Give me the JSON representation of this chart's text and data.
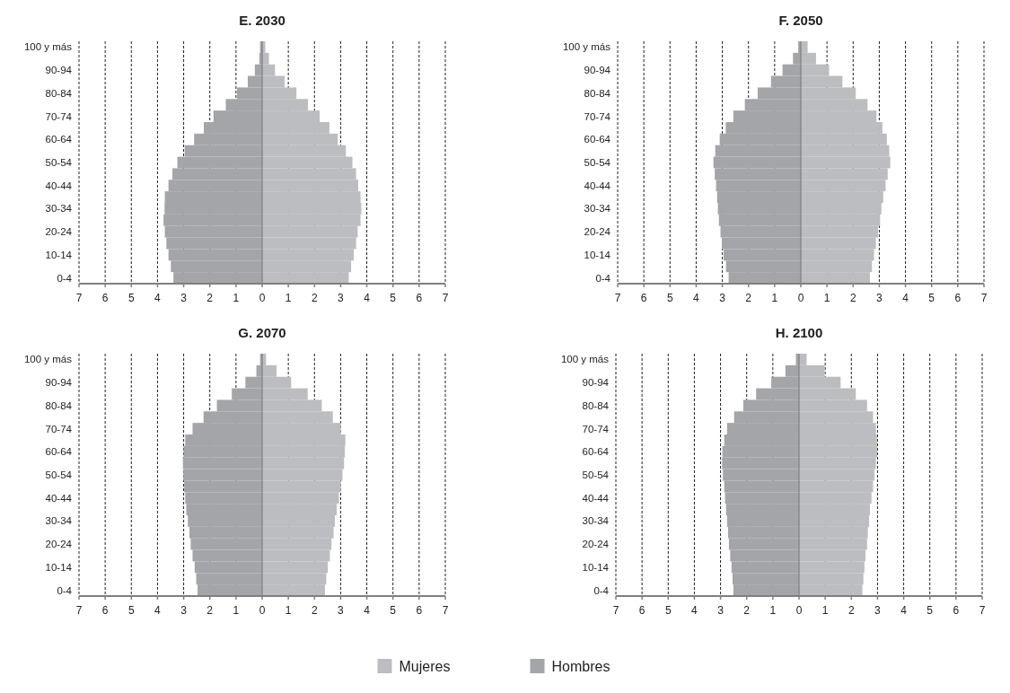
{
  "chart_data": [
    {
      "type": "bar",
      "orientation": "horizontal",
      "stacked": true,
      "title": "E. 2030",
      "grid": "x",
      "xlim": [
        -7,
        7
      ],
      "legend": "bottom",
      "xticks": [
        {
          "value": -7,
          "label": "7"
        },
        {
          "value": -6,
          "label": "6"
        },
        {
          "value": -5,
          "label": "5"
        },
        {
          "value": -4,
          "label": "4"
        },
        {
          "value": -3,
          "label": "3"
        },
        {
          "value": -2,
          "label": "2"
        },
        {
          "value": -1,
          "label": "1"
        },
        0,
        1,
        2,
        3,
        4,
        5,
        6,
        7
      ],
      "categories": [
        "100 y más",
        null,
        "90-94",
        null,
        "80-84",
        null,
        "70-74",
        null,
        "60-64",
        null,
        "50-54",
        null,
        "40-44",
        null,
        "30-34",
        null,
        "20-24",
        null,
        "10-14",
        null,
        "0-4"
      ],
      "series": [
        {
          "name": "Mujeres",
          "color": "#bcbdc0",
          "values": [
            0.12,
            0.26,
            0.49,
            0.86,
            1.31,
            1.75,
            2.2,
            2.57,
            2.89,
            3.2,
            3.45,
            3.59,
            3.67,
            3.76,
            3.79,
            3.76,
            3.65,
            3.59,
            3.5,
            3.4,
            3.31
          ]
        },
        {
          "name": "Hombres",
          "color": "#a3a5a8",
          "values": [
            -0.08,
            -0.11,
            -0.28,
            -0.55,
            -0.96,
            -1.39,
            -1.86,
            -2.23,
            -2.6,
            -2.96,
            -3.24,
            -3.43,
            -3.58,
            -3.72,
            -3.73,
            -3.77,
            -3.72,
            -3.66,
            -3.58,
            -3.49,
            -3.39
          ]
        }
      ]
    },
    {
      "type": "bar",
      "orientation": "horizontal",
      "stacked": true,
      "title": "F. 2050",
      "grid": "x",
      "xlim": [
        -7,
        7
      ],
      "xticks": [
        {
          "value": -7,
          "label": "7"
        },
        {
          "value": -6,
          "label": "6"
        },
        {
          "value": -5,
          "label": "5"
        },
        {
          "value": -4,
          "label": "4"
        },
        {
          "value": -3,
          "label": "3"
        },
        {
          "value": -2,
          "label": "2"
        },
        {
          "value": -1,
          "label": "1"
        },
        0,
        1,
        2,
        3,
        4,
        5,
        6,
        7
      ],
      "categories": [
        "100 y más",
        null,
        "90-94",
        null,
        "80-84",
        null,
        "70-74",
        null,
        "60-64",
        null,
        "50-54",
        null,
        "40-44",
        null,
        "30-34",
        null,
        "20-24",
        null,
        "10-14",
        null,
        "0-4"
      ],
      "series": [
        {
          "color": "#bcbdc0",
          "values": [
            0.26,
            0.58,
            1.08,
            1.59,
            2.1,
            2.55,
            2.89,
            3.12,
            3.29,
            3.38,
            3.42,
            3.32,
            3.24,
            3.15,
            3.08,
            3.03,
            2.95,
            2.87,
            2.8,
            2.72,
            2.64
          ]
        },
        {
          "color": "#a3a5a8",
          "values": [
            -0.1,
            -0.3,
            -0.7,
            -1.14,
            -1.65,
            -2.14,
            -2.58,
            -2.87,
            -3.1,
            -3.27,
            -3.34,
            -3.29,
            -3.24,
            -3.2,
            -3.17,
            -3.13,
            -3.07,
            -3.02,
            -2.95,
            -2.86,
            -2.76
          ]
        }
      ]
    },
    {
      "type": "bar",
      "orientation": "horizontal",
      "stacked": true,
      "title": "G. 2070",
      "grid": "x",
      "xlim": [
        -7,
        7
      ],
      "xticks": [
        {
          "value": -7,
          "label": "7"
        },
        {
          "value": -6,
          "label": "6"
        },
        {
          "value": -5,
          "label": "5"
        },
        {
          "value": -4,
          "label": "4"
        },
        {
          "value": -3,
          "label": "3"
        },
        {
          "value": -2,
          "label": "2"
        },
        {
          "value": -1,
          "label": "1"
        },
        0,
        1,
        2,
        3,
        4,
        5,
        6,
        7
      ],
      "categories": [
        "100 y más",
        null,
        "90-94",
        null,
        "80-84",
        null,
        "70-74",
        null,
        "60-64",
        null,
        "50-54",
        null,
        "40-44",
        null,
        "30-34",
        null,
        "20-24",
        null,
        "10-14",
        null,
        "0-4"
      ],
      "series": [
        {
          "color": "#bcbdc0",
          "values": [
            0.15,
            0.55,
            1.11,
            1.74,
            2.28,
            2.7,
            3.01,
            3.18,
            3.16,
            3.13,
            3.07,
            3.01,
            2.93,
            2.85,
            2.78,
            2.73,
            2.65,
            2.59,
            2.51,
            2.45,
            2.4
          ]
        },
        {
          "color": "#a3a5a8",
          "values": [
            -0.08,
            -0.22,
            -0.64,
            -1.16,
            -1.73,
            -2.24,
            -2.66,
            -2.94,
            -3.0,
            -3.03,
            -3.01,
            -2.98,
            -2.94,
            -2.9,
            -2.84,
            -2.78,
            -2.73,
            -2.66,
            -2.58,
            -2.52,
            -2.47
          ]
        }
      ]
    },
    {
      "type": "bar",
      "orientation": "horizontal",
      "stacked": true,
      "title": "H. 2100",
      "grid": "x",
      "xlim": [
        -7,
        7
      ],
      "xticks": [
        {
          "value": -7,
          "label": "7"
        },
        {
          "value": -6,
          "label": "6"
        },
        {
          "value": -5,
          "label": "5"
        },
        {
          "value": -4,
          "label": "4"
        },
        {
          "value": -3,
          "label": "3"
        },
        {
          "value": -2,
          "label": "2"
        },
        {
          "value": -1,
          "label": "1"
        },
        0,
        1,
        2,
        3,
        4,
        5,
        6,
        7
      ],
      "categories": [
        "100 y más",
        null,
        "90-94",
        null,
        "80-84",
        null,
        "70-74",
        null,
        "60-64",
        null,
        "50-54",
        null,
        "40-44",
        null,
        "30-34",
        null,
        "20-24",
        null,
        "10-14",
        null,
        "0-4"
      ],
      "series": [
        {
          "color": "#bcbdc0",
          "values": [
            0.29,
            0.98,
            1.59,
            2.17,
            2.6,
            2.83,
            2.94,
            2.98,
            2.98,
            2.94,
            2.88,
            2.83,
            2.77,
            2.71,
            2.68,
            2.63,
            2.6,
            2.54,
            2.5,
            2.46,
            2.42
          ]
        },
        {
          "color": "#a3a5a8",
          "values": [
            -0.12,
            -0.52,
            -1.06,
            -1.64,
            -2.13,
            -2.48,
            -2.75,
            -2.86,
            -2.93,
            -2.94,
            -2.91,
            -2.86,
            -2.83,
            -2.79,
            -2.75,
            -2.71,
            -2.68,
            -2.63,
            -2.58,
            -2.54,
            -2.51
          ]
        }
      ]
    }
  ]
}
